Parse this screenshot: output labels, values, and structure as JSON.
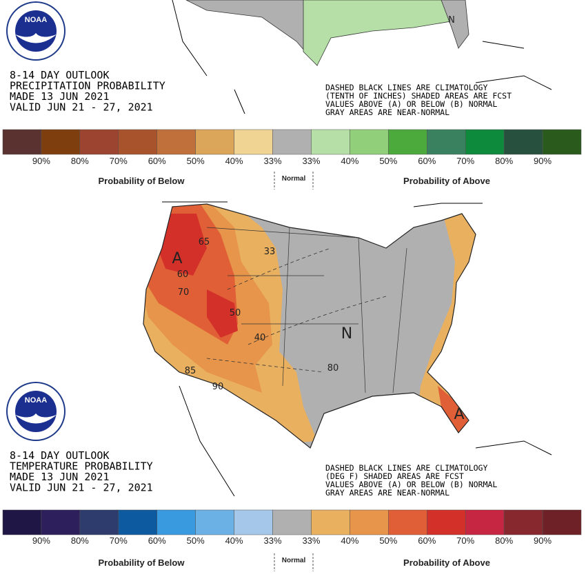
{
  "panels": [
    {
      "logo": "NOAA",
      "title_lines": [
        "8-14 DAY OUTLOOK",
        "PRECIPITATION PROBABILITY",
        "MADE  13 JUN 2021",
        "VALID  JUN 21 - 27, 2021"
      ],
      "notes": [
        "DASHED BLACK LINES ARE CLIMATOLOGY",
        "(TENTH OF INCHES) SHADED AREAS ARE FCST",
        "VALUES ABOVE (A) OR BELOW (B) NORMAL",
        "GRAY AREAS ARE NEAR-NORMAL"
      ],
      "legend": {
        "colors": [
          "#5a3230",
          "#7e3e0e",
          "#9c4430",
          "#a8532c",
          "#c0703a",
          "#dba55a",
          "#f0d494",
          "#b0b0b0",
          "#b5dfa6",
          "#92cf7b",
          "#4caa3d",
          "#3a8160",
          "#0e8a3c",
          "#27513e",
          "#2a5a1c"
        ],
        "labels": [
          "90%",
          "80%",
          "70%",
          "60%",
          "50%",
          "40%",
          "33%",
          "33%",
          "40%",
          "50%",
          "60%",
          "70%",
          "80%",
          "90%"
        ],
        "below": "Probability of Below",
        "normal": "Normal",
        "above": "Probability of Above"
      },
      "map_labels": [
        "N"
      ]
    },
    {
      "logo": "NOAA",
      "title_lines": [
        "8-14 DAY OUTLOOK",
        "TEMPERATURE PROBABILITY",
        "MADE  13 JUN 2021",
        "VALID  JUN 21 - 27, 2021"
      ],
      "notes": [
        "DASHED BLACK LINES ARE CLIMATOLOGY",
        "(DEG F) SHADED AREAS ARE FCST",
        "VALUES ABOVE (A) OR BELOW (B) NORMAL",
        "GRAY AREAS ARE NEAR-NORMAL"
      ],
      "legend": {
        "colors": [
          "#1f1646",
          "#2c1f5c",
          "#2d3c6c",
          "#0e5aa0",
          "#3a9ae0",
          "#6cb1e6",
          "#a5c8ea",
          "#b0b0b0",
          "#e9b060",
          "#e6954a",
          "#e15f36",
          "#d3302a",
          "#c62642",
          "#86282e",
          "#6e2126"
        ],
        "labels": [
          "90%",
          "80%",
          "70%",
          "60%",
          "50%",
          "40%",
          "33%",
          "33%",
          "40%",
          "50%",
          "60%",
          "70%",
          "80%",
          "90%"
        ],
        "below": "Probability of Below",
        "normal": "Normal",
        "above": "Probability of Above"
      },
      "map_labels": [
        "A",
        "65",
        "60",
        "70",
        "50",
        "40",
        "33",
        "N",
        "80",
        "85",
        "90",
        "A"
      ]
    }
  ]
}
